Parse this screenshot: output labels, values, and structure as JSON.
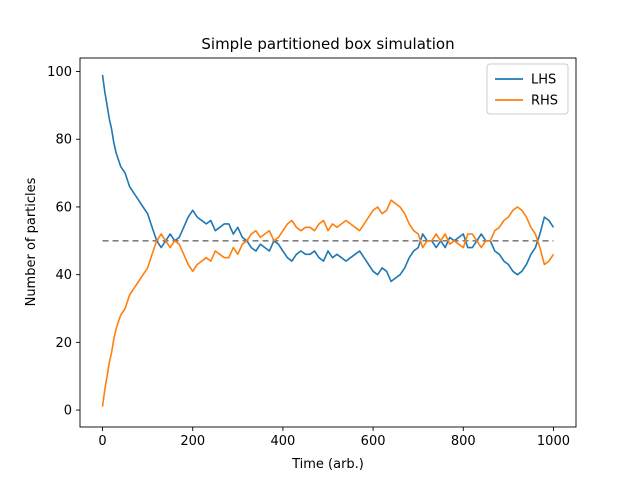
{
  "chart_data": {
    "type": "line",
    "title": "Simple partitioned box simulation",
    "xlabel": "Time (arb.)",
    "ylabel": "Number of particles",
    "xlim": [
      -50,
      1050
    ],
    "ylim": [
      -5,
      104
    ],
    "xticks": [
      0,
      200,
      400,
      600,
      800,
      1000
    ],
    "yticks": [
      0,
      20,
      40,
      60,
      80,
      100
    ],
    "grid": false,
    "legend_position": "upper right",
    "x": [
      0,
      5,
      10,
      15,
      20,
      25,
      30,
      40,
      50,
      60,
      70,
      80,
      90,
      100,
      110,
      120,
      130,
      140,
      150,
      160,
      170,
      180,
      190,
      200,
      210,
      220,
      230,
      240,
      250,
      260,
      270,
      280,
      290,
      300,
      310,
      320,
      330,
      340,
      350,
      360,
      370,
      380,
      390,
      400,
      410,
      420,
      430,
      440,
      450,
      460,
      470,
      480,
      490,
      500,
      510,
      520,
      530,
      540,
      550,
      560,
      570,
      580,
      590,
      600,
      610,
      620,
      630,
      640,
      650,
      660,
      670,
      680,
      690,
      700,
      710,
      720,
      730,
      740,
      750,
      760,
      770,
      780,
      790,
      800,
      810,
      820,
      830,
      840,
      850,
      860,
      870,
      880,
      890,
      900,
      910,
      920,
      930,
      940,
      950,
      960,
      970,
      980,
      990,
      1000
    ],
    "series": [
      {
        "name": "LHS",
        "color": "#1f77b4",
        "values": [
          99,
          94,
          90,
          86,
          83,
          79,
          76,
          72,
          70,
          66,
          64,
          62,
          60,
          58,
          54,
          50,
          48,
          50,
          52,
          50,
          51,
          54,
          57,
          59,
          57,
          56,
          55,
          56,
          53,
          54,
          55,
          55,
          52,
          54,
          51,
          50,
          48,
          47,
          49,
          48,
          47,
          50,
          49,
          47,
          45,
          44,
          46,
          47,
          46,
          46,
          47,
          45,
          44,
          47,
          45,
          46,
          45,
          44,
          45,
          46,
          47,
          45,
          43,
          41,
          40,
          42,
          41,
          38,
          39,
          40,
          42,
          45,
          47,
          48,
          52,
          50,
          50,
          48,
          50,
          48,
          51,
          50,
          51,
          52,
          48,
          48,
          50,
          52,
          50,
          50,
          47,
          46,
          44,
          43,
          41,
          40,
          41,
          43,
          46,
          48,
          52,
          57,
          56,
          54
        ]
      },
      {
        "name": "RHS",
        "color": "#ff7f0e",
        "values": [
          1,
          6,
          10,
          14,
          17,
          21,
          24,
          28,
          30,
          34,
          36,
          38,
          40,
          42,
          46,
          50,
          52,
          50,
          48,
          50,
          49,
          46,
          43,
          41,
          43,
          44,
          45,
          44,
          47,
          46,
          45,
          45,
          48,
          46,
          49,
          50,
          52,
          53,
          51,
          52,
          53,
          50,
          51,
          53,
          55,
          56,
          54,
          53,
          54,
          54,
          53,
          55,
          56,
          53,
          55,
          54,
          55,
          56,
          55,
          54,
          53,
          55,
          57,
          59,
          60,
          58,
          59,
          62,
          61,
          60,
          58,
          55,
          53,
          52,
          48,
          50,
          50,
          52,
          50,
          52,
          49,
          50,
          49,
          48,
          52,
          52,
          50,
          48,
          50,
          50,
          53,
          54,
          56,
          57,
          59,
          60,
          59,
          57,
          54,
          52,
          48,
          43,
          44,
          46
        ]
      }
    ],
    "reference_lines": [
      {
        "y": 50,
        "style": "dashed",
        "color": "#7f7f7f"
      }
    ]
  }
}
